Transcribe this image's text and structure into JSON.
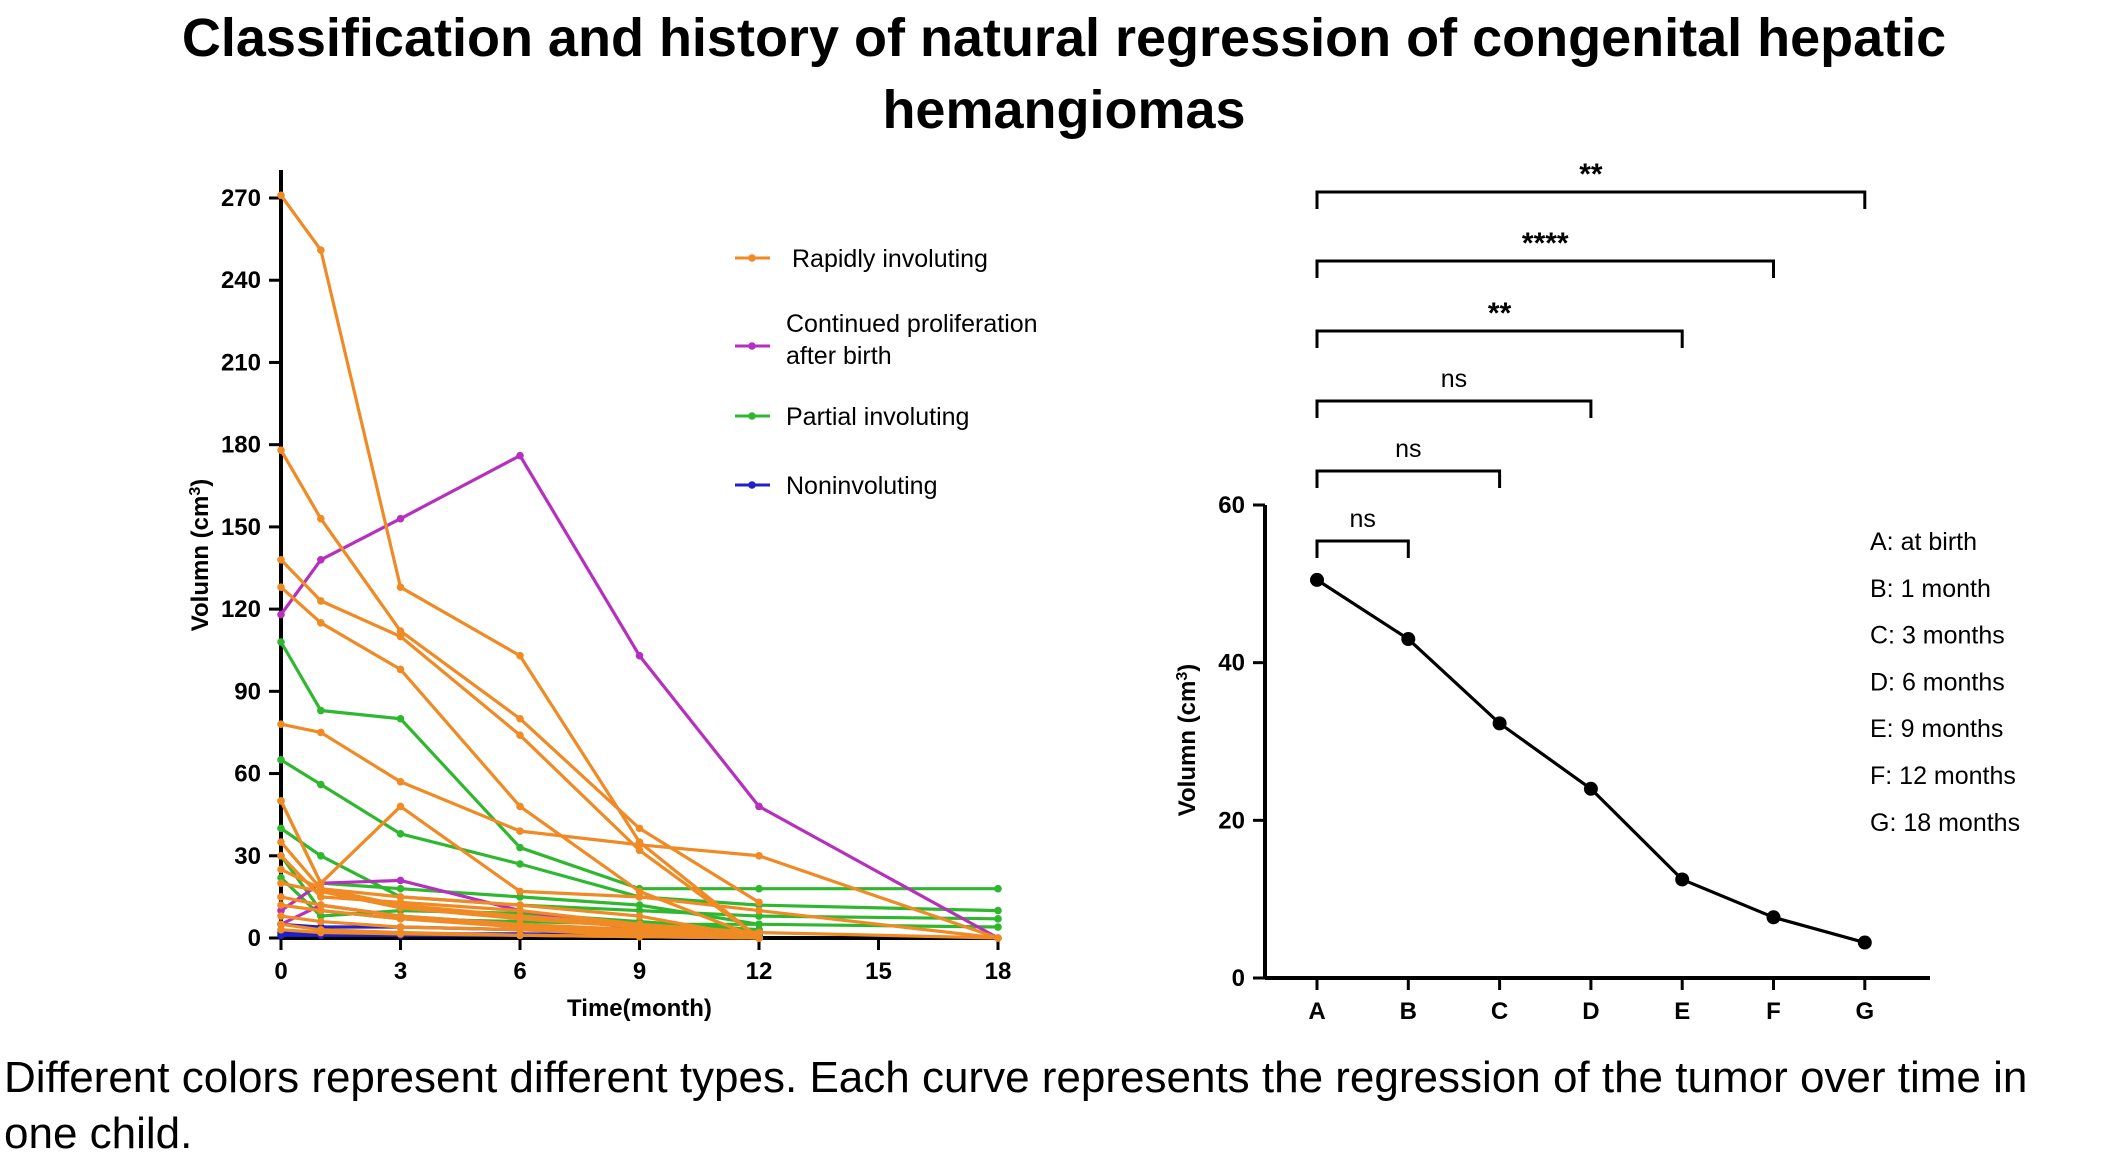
{
  "title": "Classification and history of natural regression of congenital hepatic hemangiomas",
  "caption": "Different colors represent different types. Each curve represents the regression of the tumor over time in one child.",
  "chart_data": [
    {
      "type": "line",
      "xlabel": "Time(month)",
      "ylabel": "Volumn (cm",
      "ylabel_sup": "3",
      "ylabel_end": ")",
      "xlim": [
        0,
        18
      ],
      "ylim": [
        0,
        280
      ],
      "xticks": [
        0,
        3,
        6,
        9,
        12,
        15,
        18
      ],
      "yticks": [
        0,
        30,
        60,
        90,
        120,
        150,
        180,
        210,
        240,
        270
      ],
      "legend": [
        {
          "label": "Rapidly involuting",
          "color": "#f08a24"
        },
        {
          "label": "Continued proliferation",
          "label2": "after birth",
          "color": "#b62fbf"
        },
        {
          "label": "Partial involuting",
          "color": "#2fb82f"
        },
        {
          "label": "Noninvoluting",
          "color": "#1f1fd1"
        }
      ],
      "series": [
        {
          "group": "Noninvoluting",
          "color": "#1f1fd1",
          "x": [
            0,
            1,
            3,
            6,
            9,
            12
          ],
          "y": [
            5,
            4,
            4,
            3,
            3,
            3
          ]
        },
        {
          "group": "Noninvoluting",
          "color": "#1f1fd1",
          "x": [
            0,
            1,
            3,
            6,
            9,
            12
          ],
          "y": [
            2,
            2,
            1.5,
            1.5,
            1,
            1
          ]
        },
        {
          "group": "Noninvoluting",
          "color": "#1f1fd1",
          "x": [
            0,
            1,
            3,
            6,
            9,
            12
          ],
          "y": [
            1,
            1,
            1,
            1,
            1,
            0.5
          ]
        },
        {
          "group": "Partial involuting",
          "color": "#2fb82f",
          "x": [
            0,
            1,
            3,
            6,
            9,
            12,
            18
          ],
          "y": [
            108,
            83,
            80,
            33,
            18,
            18,
            18
          ]
        },
        {
          "group": "Partial involuting",
          "color": "#2fb82f",
          "x": [
            0,
            1,
            3,
            6,
            9,
            12,
            18
          ],
          "y": [
            65,
            56,
            38,
            27,
            15,
            12,
            10
          ]
        },
        {
          "group": "Partial involuting",
          "color": "#2fb82f",
          "x": [
            0,
            1,
            3,
            6,
            9,
            12,
            18
          ],
          "y": [
            40,
            30,
            15,
            12,
            10,
            8,
            7
          ]
        },
        {
          "group": "Partial involuting",
          "color": "#2fb82f",
          "x": [
            0,
            1,
            3,
            6,
            9,
            12,
            18
          ],
          "y": [
            30,
            10,
            7,
            6,
            5,
            5,
            4
          ]
        },
        {
          "group": "Partial involuting",
          "color": "#2fb82f",
          "x": [
            0,
            1,
            3,
            6,
            9,
            12
          ],
          "y": [
            22,
            8,
            10,
            9,
            6,
            3
          ]
        },
        {
          "group": "Partial involuting",
          "color": "#2fb82f",
          "x": [
            0,
            1,
            3,
            6,
            9,
            12
          ],
          "y": [
            50,
            20,
            18,
            15,
            12,
            5
          ]
        },
        {
          "group": "Continued proliferation after birth",
          "color": "#b62fbf",
          "x": [
            0,
            1,
            3,
            6,
            9,
            12,
            18
          ],
          "y": [
            118,
            138,
            153,
            176,
            103,
            48,
            0
          ]
        },
        {
          "group": "Continued proliferation after birth",
          "color": "#b62fbf",
          "x": [
            0,
            1,
            3,
            6,
            9,
            12
          ],
          "y": [
            10,
            20,
            21,
            10,
            3,
            0
          ]
        },
        {
          "group": "Continued proliferation after birth",
          "color": "#b62fbf",
          "x": [
            0,
            1,
            3,
            6,
            9,
            12
          ],
          "y": [
            5,
            12,
            8,
            5,
            2,
            0
          ]
        },
        {
          "group": "Rapidly involuting",
          "color": "#f08a24",
          "x": [
            0,
            1,
            3,
            6,
            9,
            12
          ],
          "y": [
            271,
            251,
            128,
            103,
            35,
            0
          ]
        },
        {
          "group": "Rapidly involuting",
          "color": "#f08a24",
          "x": [
            0,
            1,
            3,
            6,
            9,
            12
          ],
          "y": [
            178,
            153,
            112,
            80,
            40,
            13
          ]
        },
        {
          "group": "Rapidly involuting",
          "color": "#f08a24",
          "x": [
            0,
            1,
            3,
            6,
            9,
            12
          ],
          "y": [
            138,
            123,
            110,
            74,
            32,
            0
          ]
        },
        {
          "group": "Rapidly involuting",
          "color": "#f08a24",
          "x": [
            0,
            1,
            3,
            6,
            9,
            12
          ],
          "y": [
            128,
            115,
            98,
            48,
            17,
            0
          ]
        },
        {
          "group": "Rapidly involuting",
          "color": "#f08a24",
          "x": [
            0,
            1,
            3,
            6,
            9,
            12,
            18
          ],
          "y": [
            78,
            75,
            57,
            39,
            34,
            30,
            0
          ]
        },
        {
          "group": "Rapidly involuting",
          "color": "#f08a24",
          "x": [
            0,
            1,
            3,
            6,
            9,
            12,
            18
          ],
          "y": [
            50,
            20,
            48,
            17,
            15,
            10,
            0
          ]
        },
        {
          "group": "Rapidly involuting",
          "color": "#f08a24",
          "x": [
            0,
            1,
            3,
            6,
            9,
            12
          ],
          "y": [
            35,
            18,
            15,
            12,
            8,
            0
          ]
        },
        {
          "group": "Rapidly involuting",
          "color": "#f08a24",
          "x": [
            0,
            1,
            3,
            6,
            9,
            12
          ],
          "y": [
            30,
            15,
            13,
            10,
            5,
            0
          ]
        },
        {
          "group": "Rapidly involuting",
          "color": "#f08a24",
          "x": [
            0,
            1,
            3,
            6,
            9,
            12,
            18
          ],
          "y": [
            25,
            18,
            12,
            8,
            5,
            2,
            0
          ]
        },
        {
          "group": "Rapidly involuting",
          "color": "#f08a24",
          "x": [
            0,
            1,
            3,
            6,
            9,
            12
          ],
          "y": [
            20,
            17,
            11,
            7,
            4,
            0
          ]
        },
        {
          "group": "Rapidly involuting",
          "color": "#f08a24",
          "x": [
            0,
            1,
            3,
            6,
            9,
            12
          ],
          "y": [
            15,
            12,
            8,
            5,
            3,
            0
          ]
        },
        {
          "group": "Rapidly involuting",
          "color": "#f08a24",
          "x": [
            0,
            1,
            3,
            6,
            9,
            12
          ],
          "y": [
            12,
            10,
            7,
            4,
            2,
            0
          ]
        },
        {
          "group": "Rapidly involuting",
          "color": "#f08a24",
          "x": [
            0,
            1,
            3,
            6,
            9,
            12
          ],
          "y": [
            8,
            6,
            4,
            3,
            1,
            0
          ]
        },
        {
          "group": "Rapidly involuting",
          "color": "#f08a24",
          "x": [
            0,
            1,
            3,
            6,
            9,
            12
          ],
          "y": [
            5,
            3,
            2,
            1,
            0.5,
            0
          ]
        },
        {
          "group": "Rapidly involuting",
          "color": "#f08a24",
          "x": [
            0,
            1,
            3,
            6,
            9,
            12
          ],
          "y": [
            3,
            2,
            1.5,
            1,
            0.5,
            0
          ]
        }
      ]
    },
    {
      "type": "line",
      "xlabel": "",
      "ylabel": "Volumn (cm",
      "ylabel_sup": "3",
      "ylabel_end": ")",
      "ylim": [
        0,
        60
      ],
      "yticks": [
        0,
        20,
        40,
        60
      ],
      "categories": [
        "A",
        "B",
        "C",
        "D",
        "E",
        "F",
        "G"
      ],
      "values": [
        50.5,
        43,
        32.3,
        24,
        12.5,
        7.7,
        4.5
      ],
      "color": "#000000",
      "significance": [
        {
          "from": "A",
          "to": "B",
          "label": "ns"
        },
        {
          "from": "A",
          "to": "C",
          "label": "ns"
        },
        {
          "from": "A",
          "to": "D",
          "label": "ns"
        },
        {
          "from": "A",
          "to": "E",
          "label": "**"
        },
        {
          "from": "A",
          "to": "F",
          "label": "****"
        },
        {
          "from": "A",
          "to": "G",
          "label": "**"
        }
      ],
      "key": [
        "A: at birth",
        "B: 1 month",
        "C: 3 months",
        "D: 6 months",
        "E: 9 months",
        "F: 12 months",
        "G: 18 months"
      ]
    }
  ]
}
